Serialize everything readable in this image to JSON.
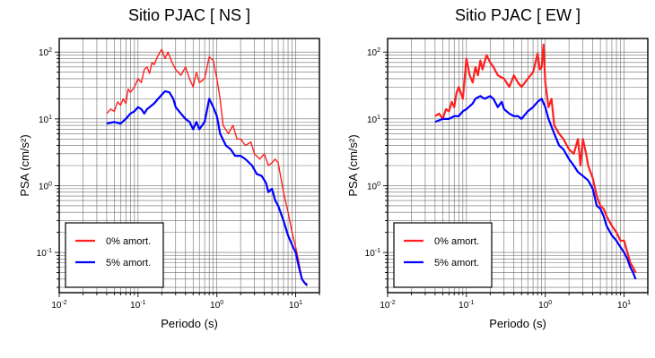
{
  "chart_data": [
    {
      "type": "line",
      "title": "Sitio PJAC [ NS ]",
      "xlabel": "Periodo (s)",
      "ylabel": "PSA (cm/s²)",
      "xscale": "log",
      "yscale": "log",
      "xlim": [
        0.01,
        20
      ],
      "ylim": [
        0.025,
        160
      ],
      "xticks": [
        {
          "value": 0.01,
          "base": "10",
          "exp": "-2"
        },
        {
          "value": 0.1,
          "base": "10",
          "exp": "-1"
        },
        {
          "value": 1,
          "base": "10",
          "exp": "0"
        },
        {
          "value": 10,
          "base": "10",
          "exp": "1"
        }
      ],
      "yticks": [
        {
          "value": 0.1,
          "base": "10",
          "exp": "-1"
        },
        {
          "value": 1,
          "base": "10",
          "exp": "0"
        },
        {
          "value": 10,
          "base": "10",
          "exp": "1"
        },
        {
          "value": 100,
          "base": "10",
          "exp": "2"
        }
      ],
      "grid": true,
      "legend_position": "bottom-left",
      "series": [
        {
          "name": "0% amort.",
          "color": "#ff2020",
          "points": [
            [
              0.04,
              12
            ],
            [
              0.045,
              14
            ],
            [
              0.05,
              13
            ],
            [
              0.055,
              18
            ],
            [
              0.06,
              16
            ],
            [
              0.065,
              20
            ],
            [
              0.07,
              17
            ],
            [
              0.075,
              28
            ],
            [
              0.08,
              25
            ],
            [
              0.09,
              30
            ],
            [
              0.1,
              40
            ],
            [
              0.11,
              35
            ],
            [
              0.12,
              55
            ],
            [
              0.13,
              60
            ],
            [
              0.14,
              48
            ],
            [
              0.15,
              70
            ],
            [
              0.16,
              65
            ],
            [
              0.18,
              90
            ],
            [
              0.2,
              110
            ],
            [
              0.22,
              80
            ],
            [
              0.24,
              100
            ],
            [
              0.27,
              70
            ],
            [
              0.3,
              55
            ],
            [
              0.35,
              45
            ],
            [
              0.4,
              60
            ],
            [
              0.45,
              40
            ],
            [
              0.5,
              30
            ],
            [
              0.55,
              50
            ],
            [
              0.6,
              35
            ],
            [
              0.7,
              40
            ],
            [
              0.8,
              85
            ],
            [
              0.9,
              75
            ],
            [
              1.0,
              40
            ],
            [
              1.1,
              20
            ],
            [
              1.2,
              8
            ],
            [
              1.4,
              6
            ],
            [
              1.6,
              8
            ],
            [
              1.8,
              5
            ],
            [
              2.0,
              5
            ],
            [
              2.3,
              4
            ],
            [
              2.7,
              4.5
            ],
            [
              3.0,
              3
            ],
            [
              3.5,
              2.5
            ],
            [
              4.0,
              3
            ],
            [
              4.5,
              2
            ],
            [
              5.0,
              2.2
            ],
            [
              5.5,
              2.5
            ],
            [
              6.0,
              2.2
            ],
            [
              7.0,
              0.8
            ],
            [
              8.0,
              0.4
            ],
            [
              9.0,
              0.2
            ],
            [
              10,
              0.12
            ],
            [
              11,
              0.07
            ],
            [
              12,
              0.04
            ],
            [
              13,
              0.035
            ],
            [
              14,
              0.034
            ]
          ]
        },
        {
          "name": "5% amort.",
          "color": "#0000ff",
          "points": [
            [
              0.04,
              8.5
            ],
            [
              0.05,
              9
            ],
            [
              0.06,
              8.5
            ],
            [
              0.07,
              10
            ],
            [
              0.08,
              12
            ],
            [
              0.09,
              13
            ],
            [
              0.1,
              15
            ],
            [
              0.11,
              14
            ],
            [
              0.12,
              12
            ],
            [
              0.13,
              14
            ],
            [
              0.14,
              15
            ],
            [
              0.16,
              17
            ],
            [
              0.18,
              20
            ],
            [
              0.2,
              23
            ],
            [
              0.22,
              26
            ],
            [
              0.25,
              25
            ],
            [
              0.28,
              20
            ],
            [
              0.3,
              15
            ],
            [
              0.35,
              12
            ],
            [
              0.4,
              10
            ],
            [
              0.45,
              9
            ],
            [
              0.5,
              7
            ],
            [
              0.55,
              9
            ],
            [
              0.6,
              7
            ],
            [
              0.7,
              9
            ],
            [
              0.8,
              20
            ],
            [
              0.9,
              15
            ],
            [
              1.0,
              11
            ],
            [
              1.1,
              6
            ],
            [
              1.3,
              4
            ],
            [
              1.5,
              3.5
            ],
            [
              1.7,
              2.8
            ],
            [
              2.0,
              2.8
            ],
            [
              2.3,
              2.5
            ],
            [
              2.8,
              2
            ],
            [
              3.2,
              1.5
            ],
            [
              3.7,
              1.4
            ],
            [
              4.2,
              1.1
            ],
            [
              4.5,
              0.8
            ],
            [
              5.0,
              0.9
            ],
            [
              5.5,
              0.6
            ],
            [
              6.0,
              0.5
            ],
            [
              7.0,
              0.3
            ],
            [
              8.0,
              0.18
            ],
            [
              9.0,
              0.13
            ],
            [
              10,
              0.1
            ],
            [
              11,
              0.06
            ],
            [
              12,
              0.04
            ],
            [
              13,
              0.035
            ],
            [
              14,
              0.032
            ]
          ]
        }
      ]
    },
    {
      "type": "line",
      "title": "Sitio PJAC [ EW ]",
      "xlabel": "Periodo (s)",
      "ylabel": "PSA (cm/s²)",
      "xscale": "log",
      "yscale": "log",
      "xlim": [
        0.01,
        20
      ],
      "ylim": [
        0.025,
        160
      ],
      "xticks": [
        {
          "value": 0.01,
          "base": "10",
          "exp": "-2"
        },
        {
          "value": 0.1,
          "base": "10",
          "exp": "-1"
        },
        {
          "value": 1,
          "base": "10",
          "exp": "0"
        },
        {
          "value": 10,
          "base": "10",
          "exp": "1"
        }
      ],
      "yticks": [
        {
          "value": 0.1,
          "base": "10",
          "exp": "-1"
        },
        {
          "value": 1,
          "base": "10",
          "exp": "0"
        },
        {
          "value": 10,
          "base": "10",
          "exp": "1"
        },
        {
          "value": 100,
          "base": "10",
          "exp": "2"
        }
      ],
      "grid": true,
      "legend_position": "bottom-left",
      "series": [
        {
          "name": "0% amort.",
          "color": "#ff2020",
          "points": [
            [
              0.04,
              11
            ],
            [
              0.045,
              12
            ],
            [
              0.05,
              10
            ],
            [
              0.055,
              14
            ],
            [
              0.06,
              13
            ],
            [
              0.065,
              18
            ],
            [
              0.07,
              15
            ],
            [
              0.075,
              25
            ],
            [
              0.08,
              30
            ],
            [
              0.09,
              20
            ],
            [
              0.1,
              80
            ],
            [
              0.11,
              45
            ],
            [
              0.12,
              35
            ],
            [
              0.13,
              60
            ],
            [
              0.14,
              45
            ],
            [
              0.15,
              75
            ],
            [
              0.16,
              55
            ],
            [
              0.18,
              90
            ],
            [
              0.2,
              70
            ],
            [
              0.22,
              60
            ],
            [
              0.25,
              45
            ],
            [
              0.3,
              40
            ],
            [
              0.35,
              30
            ],
            [
              0.4,
              45
            ],
            [
              0.45,
              35
            ],
            [
              0.5,
              30
            ],
            [
              0.6,
              40
            ],
            [
              0.7,
              50
            ],
            [
              0.8,
              95
            ],
            [
              0.85,
              55
            ],
            [
              0.9,
              60
            ],
            [
              0.95,
              130
            ],
            [
              1.0,
              35
            ],
            [
              1.1,
              15
            ],
            [
              1.2,
              20
            ],
            [
              1.3,
              8
            ],
            [
              1.5,
              6
            ],
            [
              1.7,
              5
            ],
            [
              2.0,
              3.5
            ],
            [
              2.3,
              3
            ],
            [
              2.6,
              5
            ],
            [
              2.8,
              2
            ],
            [
              3.0,
              5
            ],
            [
              3.3,
              3
            ],
            [
              3.5,
              2
            ],
            [
              4.0,
              1.3
            ],
            [
              4.5,
              0.7
            ],
            [
              5.0,
              0.5
            ],
            [
              5.5,
              0.45
            ],
            [
              6.0,
              0.35
            ],
            [
              7.0,
              0.25
            ],
            [
              8.0,
              0.2
            ],
            [
              9.0,
              0.15
            ],
            [
              10,
              0.15
            ],
            [
              11,
              0.1
            ],
            [
              12,
              0.07
            ],
            [
              13,
              0.06
            ],
            [
              14,
              0.05
            ]
          ]
        },
        {
          "name": "5% amort.",
          "color": "#0000ff",
          "points": [
            [
              0.04,
              9
            ],
            [
              0.05,
              10
            ],
            [
              0.06,
              10
            ],
            [
              0.07,
              11
            ],
            [
              0.08,
              11
            ],
            [
              0.09,
              13
            ],
            [
              0.1,
              14
            ],
            [
              0.12,
              17
            ],
            [
              0.13,
              20
            ],
            [
              0.15,
              22
            ],
            [
              0.17,
              20
            ],
            [
              0.2,
              22
            ],
            [
              0.22,
              20
            ],
            [
              0.25,
              15
            ],
            [
              0.28,
              18
            ],
            [
              0.3,
              14
            ],
            [
              0.35,
              12
            ],
            [
              0.4,
              11
            ],
            [
              0.45,
              11
            ],
            [
              0.5,
              10
            ],
            [
              0.6,
              13
            ],
            [
              0.7,
              15
            ],
            [
              0.8,
              18
            ],
            [
              0.9,
              20
            ],
            [
              1.0,
              15
            ],
            [
              1.1,
              10
            ],
            [
              1.3,
              6
            ],
            [
              1.5,
              4
            ],
            [
              1.7,
              3.5
            ],
            [
              2.0,
              2.5
            ],
            [
              2.3,
              2
            ],
            [
              2.6,
              1.6
            ],
            [
              3.0,
              1.4
            ],
            [
              3.5,
              1.2
            ],
            [
              4.0,
              0.9
            ],
            [
              4.5,
              0.5
            ],
            [
              5.0,
              0.45
            ],
            [
              5.5,
              0.35
            ],
            [
              6.0,
              0.25
            ],
            [
              7.0,
              0.18
            ],
            [
              8.0,
              0.15
            ],
            [
              9.0,
              0.12
            ],
            [
              10,
              0.1
            ],
            [
              11,
              0.08
            ],
            [
              12,
              0.06
            ],
            [
              13,
              0.05
            ],
            [
              14,
              0.04
            ]
          ]
        }
      ]
    }
  ]
}
